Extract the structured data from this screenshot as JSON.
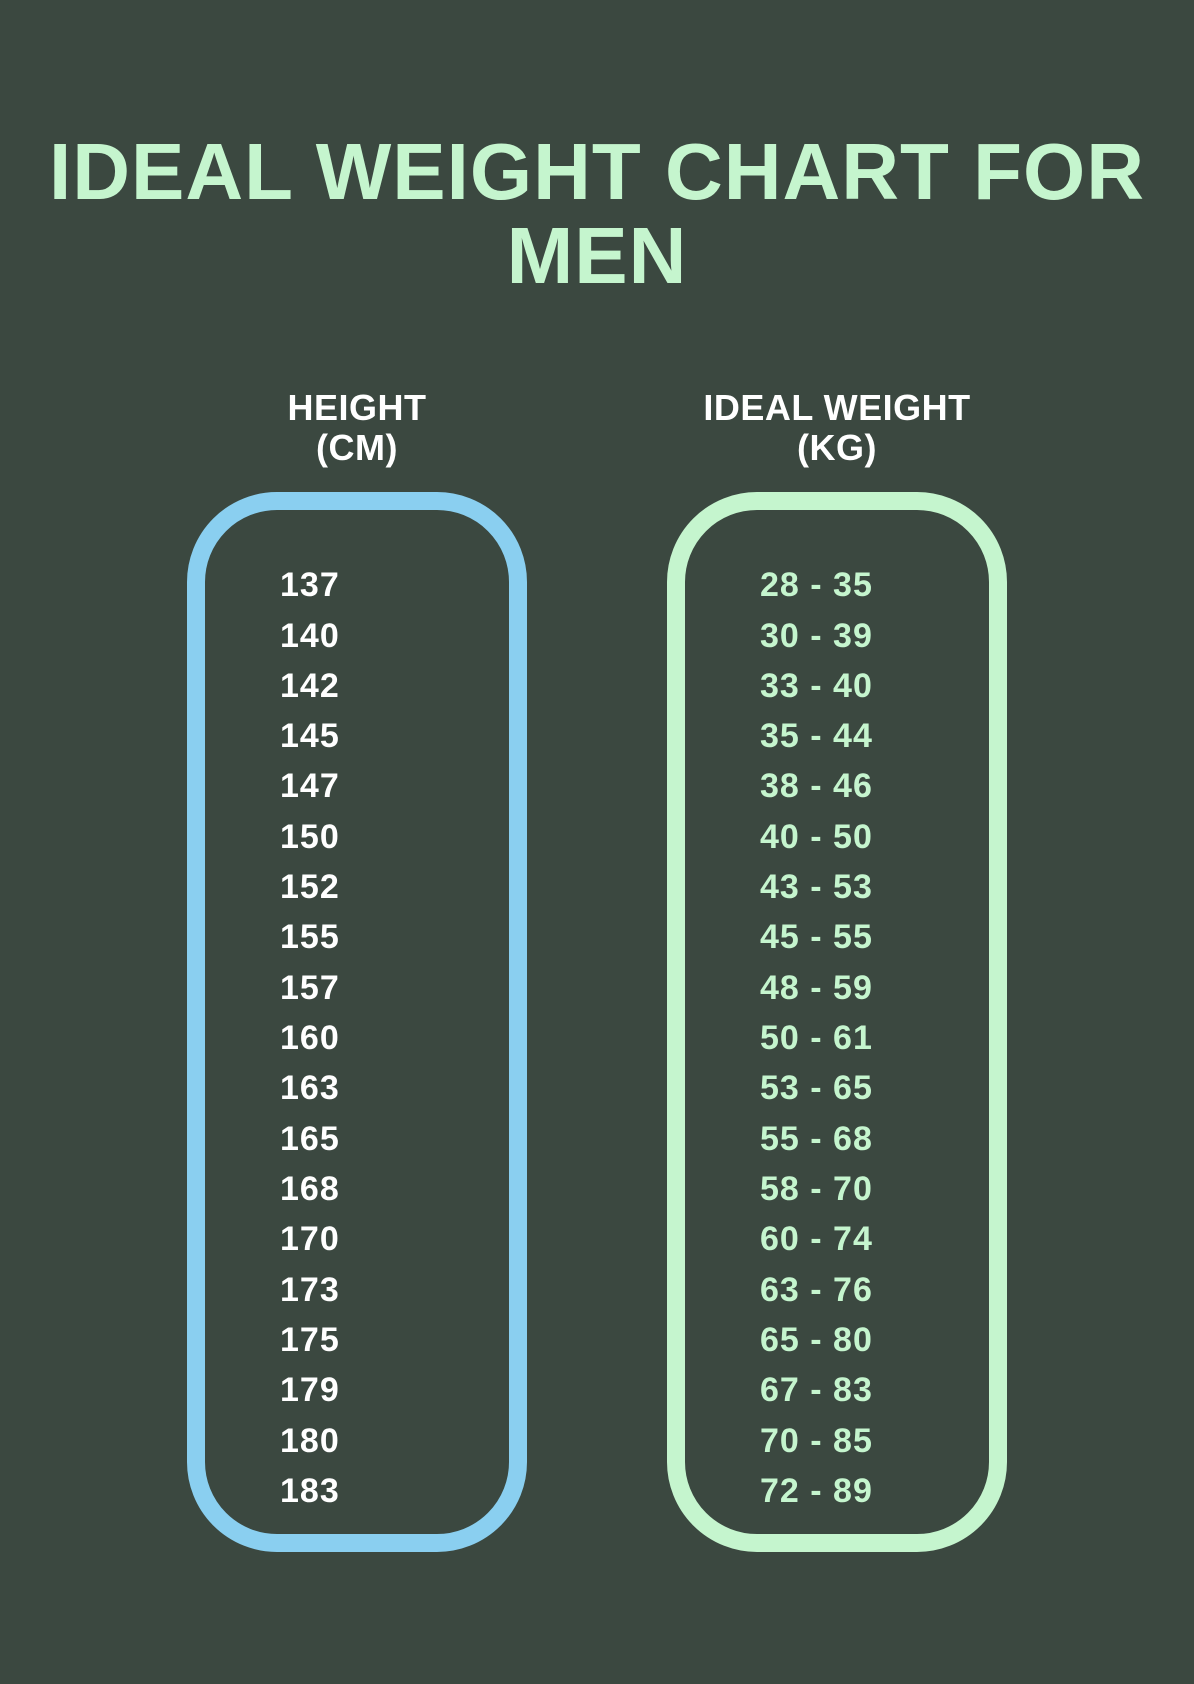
{
  "title": "IDEAL WEIGHT CHART FOR MEN",
  "background_color": "#3b4840",
  "title_color": "#c5f5ce",
  "title_fontsize": 80,
  "columns": {
    "height": {
      "header_line1": "HEIGHT",
      "header_line2": "(CM)",
      "border_color": "#8acff0",
      "text_color": "#ffffff",
      "values": [
        "137",
        "140",
        "142",
        "145",
        "147",
        "150",
        "152",
        "155",
        "157",
        "160",
        "163",
        "165",
        "168",
        "170",
        "173",
        "175",
        "179",
        "180",
        "183"
      ]
    },
    "weight": {
      "header_line1": "IDEAL WEIGHT",
      "header_line2": "(KG)",
      "border_color": "#c5f5ce",
      "text_color": "#c5f5ce",
      "values": [
        "28 - 35",
        "30 - 39",
        "33 - 40",
        "35 - 44",
        "38 - 46",
        "40 - 50",
        "43 - 53",
        "45 - 55",
        "48 - 59",
        "50 - 61",
        "53 - 65",
        "55 - 68",
        "58 - 70",
        "60 - 74",
        "63 - 76",
        "65 - 80",
        "67 - 83",
        "70 - 85",
        "72 - 89"
      ]
    }
  },
  "pill_border_width": 18,
  "pill_border_radius": 90,
  "value_fontsize": 34,
  "header_fontsize": 36,
  "header_color": "#ffffff"
}
